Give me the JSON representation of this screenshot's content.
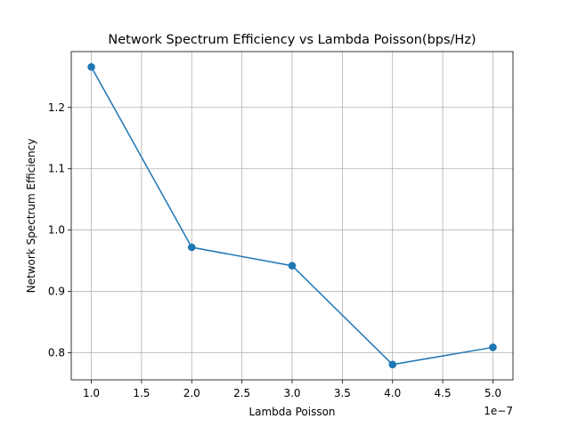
{
  "chart_data": {
    "type": "line",
    "title": "Network Spectrum Efficiency vs Lambda Poisson(bps/Hz)",
    "xlabel": "Lambda Poisson",
    "ylabel": "Network Spectrum Efficiency",
    "x_offset_label": "1e−7",
    "x": [
      1e-07,
      2e-07,
      3e-07,
      4e-07,
      5e-07
    ],
    "series": [
      {
        "values": [
          1.266,
          0.972,
          0.942,
          0.781,
          0.809
        ],
        "color": "#1f77b4",
        "marker": "circle"
      }
    ],
    "xlim": [
      8e-08,
      5.2e-07
    ],
    "ylim": [
      0.756,
      1.291
    ],
    "x_ticks": [
      1e-07,
      1.5e-07,
      2e-07,
      2.5e-07,
      3e-07,
      3.5e-07,
      4e-07,
      4.5e-07,
      5e-07
    ],
    "x_tick_labels": [
      "1.0",
      "1.5",
      "2.0",
      "2.5",
      "3.0",
      "3.5",
      "4.0",
      "4.5",
      "5.0"
    ],
    "y_ticks": [
      0.8,
      0.9,
      1.0,
      1.1,
      1.2
    ],
    "y_tick_labels": [
      "0.8",
      "0.9",
      "1.0",
      "1.1",
      "1.2"
    ],
    "grid": true,
    "legend": "none"
  }
}
